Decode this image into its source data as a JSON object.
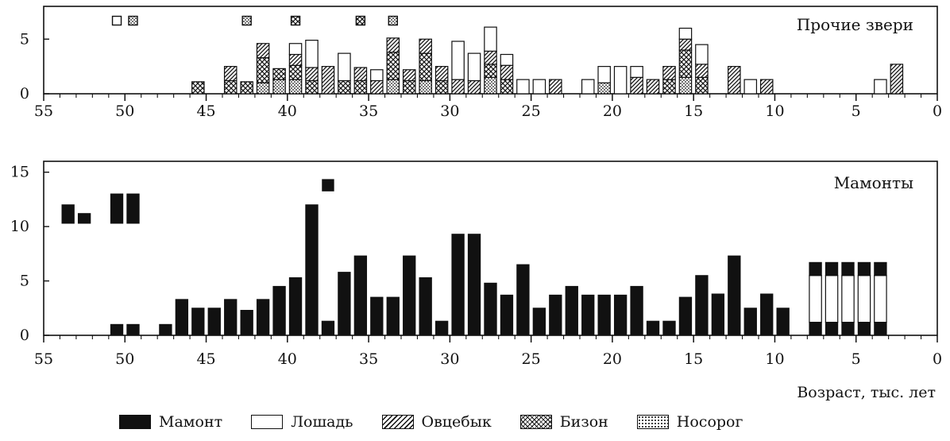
{
  "chart_data": [
    {
      "type": "bar",
      "panel": "top",
      "title": "Прочие звери",
      "xaxis_reversed": true,
      "xlim": [
        55,
        0
      ],
      "ylim": [
        0,
        8
      ],
      "yticks": [
        0,
        5
      ],
      "xticks": [
        55,
        50,
        45,
        40,
        35,
        30,
        25,
        20,
        15,
        10,
        5,
        0
      ],
      "bar_width_kyr": 0.75,
      "stacking_order": [
        "Носорог",
        "Бизон",
        "Овцебык",
        "Лошадь"
      ],
      "series": [
        {
          "name": "Лошадь",
          "pattern": "empty",
          "points": [
            [
              39.5,
              1
            ],
            [
              38.5,
              2.5
            ],
            [
              36.5,
              2.5
            ],
            [
              34.5,
              1
            ],
            [
              29.5,
              3.5
            ],
            [
              28.5,
              2.5
            ],
            [
              27.5,
              2.2
            ],
            [
              26.5,
              1
            ],
            [
              25.5,
              1.3
            ],
            [
              24.5,
              1.3
            ],
            [
              21.5,
              1.3
            ],
            [
              20.5,
              1.5
            ],
            [
              19.5,
              2.5
            ],
            [
              18.5,
              1
            ],
            [
              15.5,
              1
            ],
            [
              14.5,
              1.8
            ],
            [
              11.5,
              1.3
            ],
            [
              3.5,
              1.3
            ]
          ]
        },
        {
          "name": "Овцебык",
          "pattern": "hatch",
          "points": [
            [
              43.5,
              1.3
            ],
            [
              41.5,
              1.3
            ],
            [
              39.5,
              1
            ],
            [
              38.5,
              1.2
            ],
            [
              37.5,
              2.5
            ],
            [
              35.5,
              1.2
            ],
            [
              34.5,
              1.2
            ],
            [
              33.5,
              1.3
            ],
            [
              32.5,
              1
            ],
            [
              31.5,
              1.3
            ],
            [
              30.5,
              1.3
            ],
            [
              29.5,
              1.3
            ],
            [
              28.5,
              1.2
            ],
            [
              27.5,
              1.2
            ],
            [
              26.5,
              1.3
            ],
            [
              23.5,
              1.3
            ],
            [
              18.5,
              1.5
            ],
            [
              17.5,
              1.3
            ],
            [
              16.5,
              1.2
            ],
            [
              15.5,
              1
            ],
            [
              14.5,
              1.2
            ],
            [
              12.5,
              2.5
            ],
            [
              10.5,
              1.3
            ],
            [
              2.5,
              2.7
            ]
          ]
        },
        {
          "name": "Бизон",
          "pattern": "cross",
          "points": [
            [
              45.5,
              1.1
            ],
            [
              43.5,
              1.2
            ],
            [
              42.5,
              1.1
            ],
            [
              41.5,
              2.3
            ],
            [
              40.5,
              1
            ],
            [
              39.5,
              1.3
            ],
            [
              38.5,
              1.2
            ],
            [
              36.5,
              1.2
            ],
            [
              35.5,
              1.2
            ],
            [
              33.5,
              2.5
            ],
            [
              32.5,
              1.2
            ],
            [
              31.5,
              2.5
            ],
            [
              30.5,
              1.2
            ],
            [
              27.5,
              1.2
            ],
            [
              26.5,
              1.3
            ],
            [
              16.5,
              1.3
            ],
            [
              15.5,
              2.5
            ],
            [
              14.5,
              1.5
            ]
          ]
        },
        {
          "name": "Носорог",
          "pattern": "dots",
          "points": [
            [
              41.5,
              1
            ],
            [
              40.5,
              1.3
            ],
            [
              39.5,
              1.3
            ],
            [
              33.5,
              1.3
            ],
            [
              31.5,
              1.2
            ],
            [
              27.5,
              1.5
            ],
            [
              20.5,
              1
            ],
            [
              15.5,
              1.5
            ]
          ]
        }
      ],
      "markers_above": [
        {
          "x": 50.5,
          "pattern": "empty"
        },
        {
          "x": 49.5,
          "pattern": "dots"
        },
        {
          "x": 42.5,
          "pattern": "dots"
        },
        {
          "x": 39.5,
          "pattern": "cross"
        },
        {
          "x": 35.5,
          "pattern": "cross"
        },
        {
          "x": 33.5,
          "pattern": "dots"
        }
      ]
    },
    {
      "type": "bar",
      "panel": "bottom",
      "title": "Мамонты",
      "xaxis_reversed": true,
      "xlim": [
        55,
        0
      ],
      "ylim": [
        0,
        16
      ],
      "yticks": [
        0,
        5,
        10,
        15
      ],
      "xticks": [
        55,
        50,
        45,
        40,
        35,
        30,
        25,
        20,
        15,
        10,
        5,
        0
      ],
      "bar_width_kyr": 0.75,
      "xlabel": "Возраст, тыс. лет",
      "series": [
        {
          "name": "Мамонт",
          "pattern": "solid",
          "points": [
            [
              50.5,
              1
            ],
            [
              49.5,
              1
            ],
            [
              47.5,
              1
            ],
            [
              46.5,
              3.3
            ],
            [
              45.5,
              2.5
            ],
            [
              44.5,
              2.5
            ],
            [
              43.5,
              3.3
            ],
            [
              42.5,
              2.3
            ],
            [
              41.5,
              3.3
            ],
            [
              40.5,
              4.5
            ],
            [
              39.5,
              5.3
            ],
            [
              38.5,
              12
            ],
            [
              37.5,
              1.3
            ],
            [
              36.5,
              5.8
            ],
            [
              35.5,
              7.3
            ],
            [
              34.5,
              3.5
            ],
            [
              33.5,
              3.5
            ],
            [
              32.5,
              7.3
            ],
            [
              31.5,
              5.3
            ],
            [
              30.5,
              1.3
            ],
            [
              29.5,
              9.3
            ],
            [
              28.5,
              9.3
            ],
            [
              27.5,
              4.8
            ],
            [
              26.5,
              3.7
            ],
            [
              25.5,
              6.5
            ],
            [
              24.5,
              2.5
            ],
            [
              23.5,
              3.7
            ],
            [
              22.5,
              4.5
            ],
            [
              21.5,
              3.7
            ],
            [
              20.5,
              3.7
            ],
            [
              19.5,
              3.7
            ],
            [
              18.5,
              4.5
            ],
            [
              17.5,
              1.3
            ],
            [
              16.5,
              1.3
            ],
            [
              15.5,
              3.5
            ],
            [
              14.5,
              5.5
            ],
            [
              13.5,
              3.8
            ],
            [
              12.5,
              7.3
            ],
            [
              11.5,
              2.5
            ],
            [
              10.5,
              3.8
            ],
            [
              9.5,
              2.5
            ]
          ]
        }
      ],
      "ranges": [
        {
          "x": 53.5,
          "from": 10.3,
          "to": 12
        },
        {
          "x": 52.5,
          "from": 10.3,
          "to": 11.2
        },
        {
          "x": 50.5,
          "from": 10.3,
          "to": 13
        },
        {
          "x": 49.5,
          "from": 10.3,
          "to": 13
        }
      ],
      "markers_above": [
        {
          "x": 37.5,
          "y": 13.8,
          "pattern": "solid"
        }
      ],
      "split_bars": [
        {
          "x": 7.5,
          "bottom": 1.2,
          "middle": 4.3,
          "top": 1.2
        },
        {
          "x": 6.5,
          "bottom": 1.2,
          "middle": 4.3,
          "top": 1.2
        },
        {
          "x": 5.5,
          "bottom": 1.2,
          "middle": 4.3,
          "top": 1.2
        },
        {
          "x": 4.5,
          "bottom": 1.2,
          "middle": 4.3,
          "top": 1.2
        },
        {
          "x": 3.5,
          "bottom": 1.2,
          "middle": 4.3,
          "top": 1.2
        }
      ]
    }
  ],
  "legend": [
    {
      "label": "Мамонт",
      "pattern": "solid"
    },
    {
      "label": "Лошадь",
      "pattern": "empty"
    },
    {
      "label": "Овцебык",
      "pattern": "hatch"
    },
    {
      "label": "Бизон",
      "pattern": "cross"
    },
    {
      "label": "Носорог",
      "pattern": "dots"
    }
  ]
}
